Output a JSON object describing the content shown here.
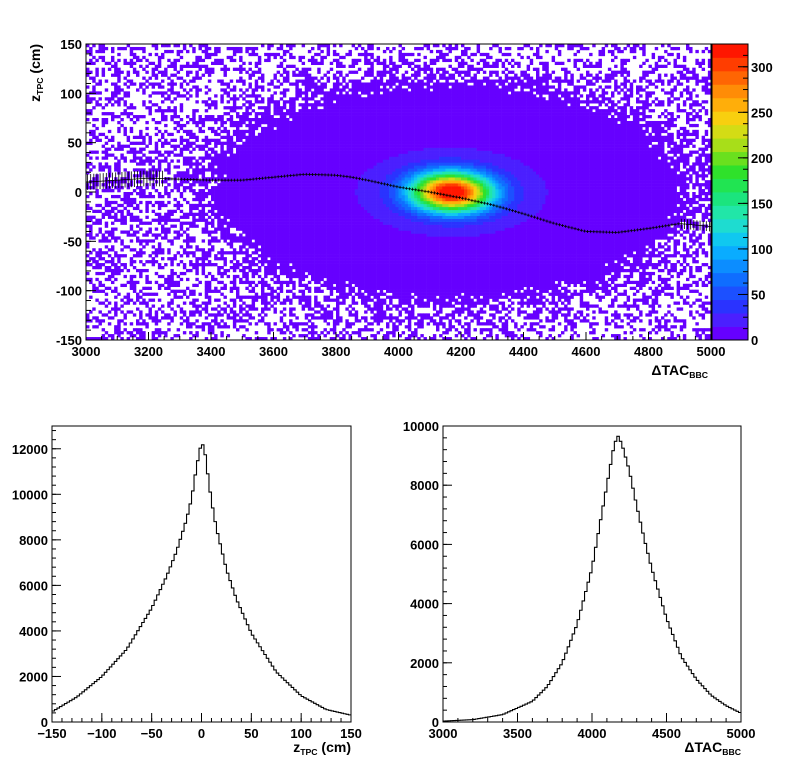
{
  "chart_data": [
    {
      "type": "heatmap",
      "xlabel": "ΔTAC",
      "xlabel_sub": "BBC",
      "ylabel": "z",
      "ylabel_sub": "TPC",
      "ylabel_unit": "(cm)",
      "xlim": [
        3000,
        5000
      ],
      "ylim": [
        -150,
        150
      ],
      "x_ticks": [
        3000,
        3200,
        3400,
        3600,
        3800,
        4000,
        4200,
        4400,
        4600,
        4800,
        5000
      ],
      "y_ticks": [
        -150,
        -100,
        -50,
        0,
        50,
        100,
        150
      ],
      "colorbar": {
        "range": [
          0,
          325
        ],
        "ticks": [
          0,
          50,
          100,
          150,
          200,
          250,
          300
        ],
        "colors": [
          "#6600ff",
          "#4b1fff",
          "#2a33ff",
          "#1c50ff",
          "#0f6dff",
          "#0c8dff",
          "#0aacff",
          "#10c8f0",
          "#1edcd0",
          "#21e6a8",
          "#1be47e",
          "#21e452",
          "#2fe12b",
          "#6ae01e",
          "#a8de19",
          "#d4dc15",
          "#f8cf0f",
          "#ffae0a",
          "#ff8c06",
          "#ff6503",
          "#ff3d00",
          "#ff1600"
        ]
      },
      "profile": {
        "x": [
          3000,
          3100,
          3200,
          3300,
          3400,
          3500,
          3600,
          3700,
          3800,
          3850,
          3900,
          4000,
          4100,
          4200,
          4300,
          4400,
          4500,
          4600,
          4700,
          4800,
          4900,
          5000
        ],
        "y": [
          10,
          12,
          14,
          13,
          12,
          12,
          15,
          18,
          17,
          15,
          12,
          5,
          0,
          -6,
          -13,
          -22,
          -32,
          -40,
          -41,
          -37,
          -32,
          -35
        ]
      },
      "hotspot": {
        "x": 4170,
        "y": 0
      }
    },
    {
      "type": "line",
      "xlabel": "z",
      "xlabel_sub": "TPC",
      "xlabel_unit": "(cm)",
      "xlim": [
        -150,
        150
      ],
      "ylim": [
        0,
        13000
      ],
      "x_ticks": [
        -150,
        -100,
        -50,
        0,
        50,
        100,
        150
      ],
      "x_tick_labels": [
        "−150",
        "−100",
        "−50",
        "0",
        "50",
        "100",
        "150"
      ],
      "y_ticks": [
        0,
        2000,
        4000,
        6000,
        8000,
        10000,
        12000
      ],
      "x": [
        -150,
        -125,
        -100,
        -75,
        -50,
        -35,
        -25,
        -15,
        -10,
        -5,
        0,
        3,
        5,
        10,
        15,
        25,
        35,
        50,
        75,
        100,
        125,
        150
      ],
      "values": [
        450,
        1100,
        2000,
        3200,
        5000,
        6400,
        7500,
        8900,
        9800,
        11200,
        12300,
        12000,
        11300,
        9700,
        8500,
        6700,
        5400,
        3900,
        2200,
        1150,
        550,
        300
      ]
    },
    {
      "type": "line",
      "xlabel": "ΔTAC",
      "xlabel_sub": "BBC",
      "xlim": [
        3000,
        5000
      ],
      "ylim": [
        0,
        10000
      ],
      "x_ticks": [
        3000,
        3500,
        4000,
        4500,
        5000
      ],
      "y_ticks": [
        0,
        2000,
        4000,
        6000,
        8000,
        10000
      ],
      "x": [
        3000,
        3200,
        3400,
        3600,
        3700,
        3800,
        3900,
        4000,
        4050,
        4100,
        4150,
        4175,
        4200,
        4250,
        4300,
        4350,
        4400,
        4500,
        4600,
        4700,
        4800,
        4900,
        5000
      ],
      "values": [
        30,
        80,
        250,
        700,
        1200,
        2000,
        3300,
        5200,
        6600,
        8000,
        9400,
        9650,
        9400,
        8500,
        7300,
        6200,
        5200,
        3500,
        2200,
        1450,
        900,
        550,
        300
      ]
    }
  ]
}
